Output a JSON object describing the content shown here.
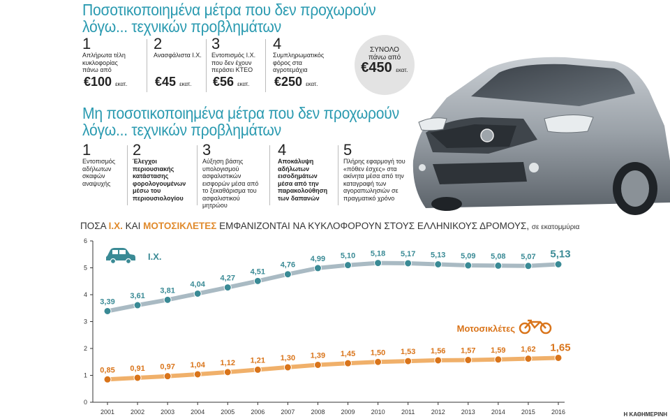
{
  "heading1": {
    "line1": "Ποσοτικοποιημένα μέτρα που δεν προχωρούν",
    "line2": "λόγω... τεχνικών προβλημάτων"
  },
  "quantified": [
    {
      "num": "1",
      "text": "Απλήρωτα τέλη κυκλοφορίας πάνω από",
      "amount": "€100",
      "unit": "εκατ."
    },
    {
      "num": "2",
      "text": "Ανασφάλιστα Ι.Χ.",
      "amount": "€45",
      "unit": "εκατ."
    },
    {
      "num": "3",
      "text": "Εντοπισμός Ι.Χ. που δεν έχουν περάσει ΚΤΕΟ",
      "amount": "€56",
      "unit": "εκατ."
    },
    {
      "num": "4",
      "text": "Συμπληρωματικός φόρος στα αγροτεμάχια",
      "amount": "€250",
      "unit": "εκατ."
    }
  ],
  "total": {
    "label1": "ΣΥΝΟΛΟ",
    "label2": "πάνω από",
    "amount": "€450",
    "unit": "εκατ."
  },
  "heading2": {
    "line1": "Μη ποσοτικοποιημένα μέτρα που δεν προχωρούν",
    "line2": "λόγω... τεχνικών προβλημάτων"
  },
  "unquantified": [
    {
      "num": "1",
      "text": "Εντοπισμός αδήλωτων σκαφών αναψυχής"
    },
    {
      "num": "2",
      "text": "Έλεγχοι περιουσιακής κατάστασης φορολογουμένων μέσω του περιουσιολογίου"
    },
    {
      "num": "3",
      "text": "Αύξηση βάσης υπολογισμού ασφαλιστικών εισφορών μέσα από το ξεκαθάρισμα του ασφαλιστικού μητρώου"
    },
    {
      "num": "4",
      "text": "Αποκάλυψη αδήλωτων εισοδημάτων μέσα από την παρακολούθηση των δαπανών"
    },
    {
      "num": "5",
      "text": "Πλήρης εφαρμογή του «πόθεν έσχες» στα ακίνητα μέσα από την καταγραφή των αγοραπωλησιών σε πραγματικό χρόνο"
    }
  ],
  "chart_title": {
    "part1": "ΠΟΣΑ ",
    "car": "Ι.Χ.",
    "part2": " ΚΑΙ ",
    "moto": "ΜΟΤΟΣΙΚΛΕΤΕΣ",
    "part3": " ΕΜΦΑΝΙΖΟΝΤΑΙ ΝΑ ΚΥΚΛΟΦΟΡΟΥΝ ΣΤΟΥΣ ΕΛΛΗΝΙΚΟΥΣ ΔΡΟΜΟΥΣ, ",
    "unit": "σε εκατομμύρια"
  },
  "credit": "Η ΚΑΘΗΜΕΡΙΝΗ",
  "chart_data": {
    "type": "line",
    "x": [
      "2001",
      "2002",
      "2003",
      "2004",
      "2005",
      "2006",
      "2007",
      "2008",
      "2009",
      "2010",
      "2011",
      "2012",
      "2013",
      "2014",
      "2015",
      "2016"
    ],
    "ylim": [
      0,
      6
    ],
    "yticks": [
      0,
      1,
      2,
      3,
      4,
      5,
      6
    ],
    "grid": false,
    "series": [
      {
        "name": "Ι.Χ.",
        "color": "#a9bac3",
        "point_color": "#3a8a95",
        "label_color": "#3a8a95",
        "values": [
          3.39,
          3.61,
          3.81,
          4.04,
          4.27,
          4.51,
          4.76,
          4.99,
          5.1,
          5.18,
          5.17,
          5.13,
          5.09,
          5.08,
          5.07,
          5.13
        ],
        "labels": [
          "3,39",
          "3,61",
          "3,81",
          "4,04",
          "4,27",
          "4,51",
          "4,76",
          "4,99",
          "5,10",
          "5,18",
          "5,17",
          "5,13",
          "5,09",
          "5,08",
          "5,07",
          "5,13"
        ]
      },
      {
        "name": "Μοτοσικλέτες",
        "color": "#f0b06a",
        "point_color": "#d9741a",
        "label_color": "#d9741a",
        "values": [
          0.85,
          0.91,
          0.97,
          1.04,
          1.12,
          1.21,
          1.3,
          1.39,
          1.45,
          1.5,
          1.53,
          1.56,
          1.57,
          1.59,
          1.62,
          1.65
        ],
        "labels": [
          "0,85",
          "0,91",
          "0,97",
          "1,04",
          "1,12",
          "1,21",
          "1,30",
          "1,39",
          "1,45",
          "1,50",
          "1,53",
          "1,56",
          "1,57",
          "1,59",
          "1,62",
          "1,65"
        ]
      }
    ]
  }
}
